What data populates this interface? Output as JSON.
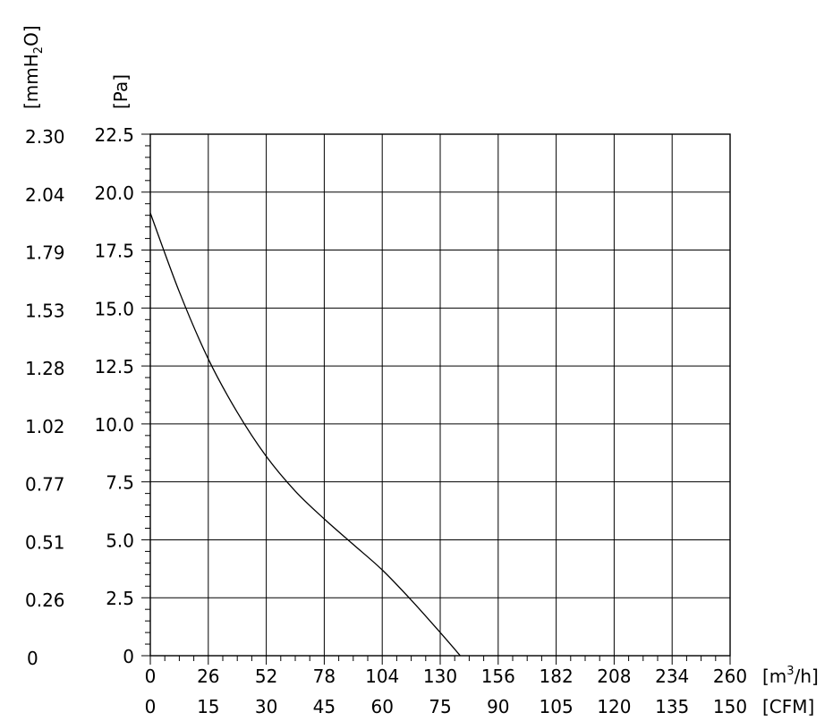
{
  "chart_data": {
    "type": "line",
    "title": "",
    "grid": true,
    "axes": {
      "x_primary": {
        "unit": "[m³/h]",
        "unit_base": "[m",
        "unit_sup": "3",
        "unit_tail": "/h]",
        "range": [
          0,
          260
        ],
        "ticks": [
          "0",
          "26",
          "52",
          "78",
          "104",
          "130",
          "156",
          "182",
          "208",
          "234",
          "260"
        ]
      },
      "x_secondary": {
        "unit": "[CFM]",
        "range": [
          0,
          150
        ],
        "ticks": [
          "0",
          "15",
          "30",
          "45",
          "60",
          "75",
          "90",
          "105",
          "120",
          "135",
          "150"
        ]
      },
      "y_primary": {
        "unit": "[Pa]",
        "range": [
          0,
          22.5
        ],
        "ticks": [
          "0",
          "2.5",
          "5.0",
          "7.5",
          "10.0",
          "12.5",
          "15.0",
          "17.5",
          "20.0",
          "22.5"
        ]
      },
      "y_secondary": {
        "unit": "[mmH₂O]",
        "unit_base": "[mmH",
        "unit_sub": "2",
        "unit_tail": "O]",
        "range": [
          0,
          2.3
        ],
        "ticks": [
          "0",
          "0.26",
          "0.51",
          "0.77",
          "1.02",
          "1.28",
          "1.53",
          "1.79",
          "2.04",
          "2.30"
        ]
      }
    },
    "series": [
      {
        "x": [
          0,
          13,
          26,
          39,
          52,
          65,
          78,
          91,
          104,
          117,
          130,
          139
        ],
        "y": [
          19.1,
          15.7,
          12.8,
          10.5,
          8.6,
          7.1,
          5.9,
          4.8,
          3.7,
          2.4,
          1.0,
          0
        ]
      }
    ]
  }
}
